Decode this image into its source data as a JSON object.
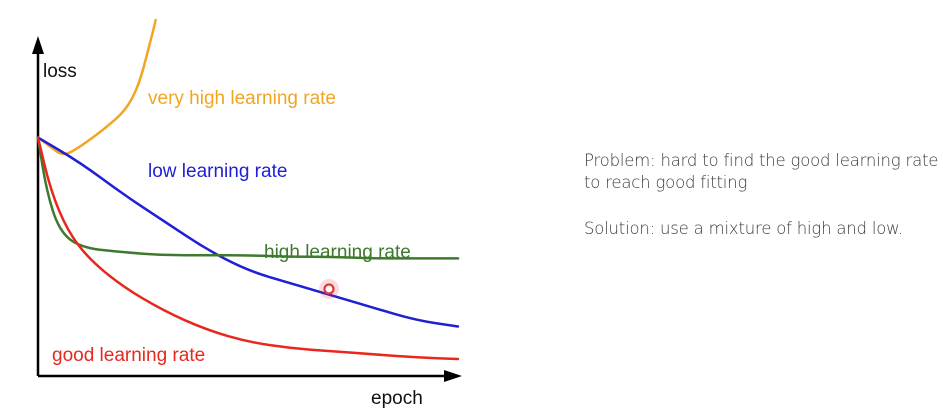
{
  "chart_data": {
    "type": "line",
    "xlabel": "epoch",
    "ylabel": "loss",
    "series": [
      {
        "name": "very high learning rate",
        "color": "#f0a623",
        "points": [
          [
            0,
            0.77
          ],
          [
            3,
            0.74
          ],
          [
            6,
            0.71
          ],
          [
            10,
            0.74
          ],
          [
            16,
            0.8
          ],
          [
            21,
            0.86
          ],
          [
            24,
            0.94
          ],
          [
            26,
            1.04
          ],
          [
            27.5,
            1.12
          ],
          [
            28,
            1.15
          ]
        ]
      },
      {
        "name": "low learning rate",
        "color": "#1f1fd6",
        "points": [
          [
            0,
            0.77
          ],
          [
            10,
            0.69
          ],
          [
            20,
            0.59
          ],
          [
            30,
            0.5
          ],
          [
            40,
            0.41
          ],
          [
            50,
            0.34
          ],
          [
            60,
            0.3
          ],
          [
            70,
            0.26
          ],
          [
            80,
            0.22
          ],
          [
            90,
            0.18
          ],
          [
            100,
            0.16
          ]
        ]
      },
      {
        "name": "high learning rate",
        "color": "#3d7a2d",
        "points": [
          [
            0,
            0.77
          ],
          [
            2,
            0.6
          ],
          [
            5,
            0.47
          ],
          [
            10,
            0.415
          ],
          [
            20,
            0.4
          ],
          [
            30,
            0.39
          ],
          [
            40,
            0.39
          ],
          [
            50,
            0.39
          ],
          [
            60,
            0.385
          ],
          [
            70,
            0.385
          ],
          [
            80,
            0.38
          ],
          [
            90,
            0.38
          ],
          [
            100,
            0.38
          ]
        ]
      },
      {
        "name": "good learning rate",
        "color": "#e8281e",
        "points": [
          [
            0,
            0.77
          ],
          [
            3,
            0.6
          ],
          [
            7,
            0.47
          ],
          [
            12,
            0.38
          ],
          [
            20,
            0.29
          ],
          [
            30,
            0.21
          ],
          [
            40,
            0.15
          ],
          [
            50,
            0.11
          ],
          [
            60,
            0.09
          ],
          [
            70,
            0.08
          ],
          [
            80,
            0.07
          ],
          [
            90,
            0.06
          ],
          [
            100,
            0.055
          ]
        ]
      }
    ],
    "xlim": [
      0,
      100
    ],
    "ylim": [
      0,
      1.15
    ],
    "grid": false,
    "legend": "inline labels"
  },
  "notes": {
    "problem": "Problem: hard to find the good learning rate to reach good fitting",
    "solution": "Solution: use a mixture of high and low."
  },
  "cursor_color": "#e53935"
}
